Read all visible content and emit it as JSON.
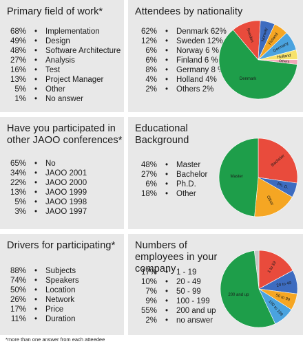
{
  "footnote": "*more than one answer from each atteedee",
  "chart_data": [
    {
      "id": "field",
      "type": "table",
      "title": "Primary field of work*",
      "rows": [
        {
          "pct": "68%",
          "label": "Implementation"
        },
        {
          "pct": "49%",
          "label": "Design"
        },
        {
          "pct": "48%",
          "label": "Software Architecture"
        },
        {
          "pct": "27%",
          "label": "Analysis"
        },
        {
          "pct": "16%",
          "label": "Test"
        },
        {
          "pct": "13%",
          "label": "Project Manager"
        },
        {
          "pct": "5%",
          "label": "Other"
        },
        {
          "pct": "1%",
          "label": "No answer"
        }
      ]
    },
    {
      "id": "nationality",
      "type": "pie",
      "title": "Attendees by nationality",
      "rows": [
        {
          "pct": "62%",
          "label": "Denmark 62%"
        },
        {
          "pct": "12%",
          "label": "Sweden 12%"
        },
        {
          "pct": "6%",
          "label": "Norway 6 %"
        },
        {
          "pct": "6%",
          "label": "Finland 6 %"
        },
        {
          "pct": "8%",
          "label": "Germany 8 %"
        },
        {
          "pct": "4%",
          "label": "Holland 4%"
        },
        {
          "pct": "2%",
          "label": "Others 2%"
        }
      ],
      "slices": [
        {
          "label": "Sweden",
          "value": 12,
          "color": "#e94b3c"
        },
        {
          "label": "Norway",
          "value": 6,
          "color": "#3d6cc0"
        },
        {
          "label": "Finland",
          "value": 6,
          "color": "#f5a623"
        },
        {
          "label": "Germany",
          "value": 8,
          "color": "#4aa3df"
        },
        {
          "label": "Holland",
          "value": 4,
          "color": "#f7e26b"
        },
        {
          "label": "Others",
          "value": 2,
          "color": "#f2a7b8"
        },
        {
          "label": "Denmark",
          "value": 62,
          "color": "#1e9e4a"
        }
      ]
    },
    {
      "id": "jaoo",
      "type": "table",
      "title": "Have you participated in other JAOO conferences*",
      "rows": [
        {
          "pct": "65%",
          "label": "No"
        },
        {
          "pct": "34%",
          "label": "JAOO 2001"
        },
        {
          "pct": "22%",
          "label": "JAOO 2000"
        },
        {
          "pct": "13%",
          "label": "JAOO 1999"
        },
        {
          "pct": "5%",
          "label": "JAOO 1998"
        },
        {
          "pct": "3%",
          "label": "JAOO 1997"
        }
      ]
    },
    {
      "id": "education",
      "type": "pie",
      "title": "Educational Background",
      "rows": [
        {
          "pct": "48%",
          "label": "Master"
        },
        {
          "pct": "27%",
          "label": "Bachelor"
        },
        {
          "pct": "6%",
          "label": "Ph.D."
        },
        {
          "pct": "18%",
          "label": "Other"
        }
      ],
      "slices": [
        {
          "label": "Bachelor",
          "value": 27,
          "color": "#e94b3c"
        },
        {
          "label": "Ph. D.",
          "value": 6,
          "color": "#3d6cc0"
        },
        {
          "label": "Other",
          "value": 18,
          "color": "#f5a623"
        },
        {
          "label": "Master",
          "value": 48,
          "color": "#1e9e4a"
        }
      ]
    },
    {
      "id": "drivers",
      "type": "table",
      "title": "Drivers for participating*",
      "rows": [
        {
          "pct": "88%",
          "label": "Subjects"
        },
        {
          "pct": "74%",
          "label": "Speakers"
        },
        {
          "pct": "50%",
          "label": "Location"
        },
        {
          "pct": "26%",
          "label": "Network"
        },
        {
          "pct": "17%",
          "label": "Price"
        },
        {
          "pct": "11%",
          "label": "Duration"
        }
      ]
    },
    {
      "id": "employees",
      "type": "pie",
      "title": "Numbers of employees in your company",
      "rows": [
        {
          "pct": "17%",
          "label": "1 - 19"
        },
        {
          "pct": "10%",
          "label": "20 - 49"
        },
        {
          "pct": "7%",
          "label": "50 - 99"
        },
        {
          "pct": "9%",
          "label": "100 - 199"
        },
        {
          "pct": "55%",
          "label": "200 and up"
        },
        {
          "pct": "2%",
          "label": "no answer"
        }
      ],
      "slices": [
        {
          "label": "",
          "value": 2,
          "color": "#c7c7c7"
        },
        {
          "label": "1 to 19",
          "value": 17,
          "color": "#e94b3c"
        },
        {
          "label": "20 to 49",
          "value": 10,
          "color": "#3d6cc0"
        },
        {
          "label": "50 to 99",
          "value": 7,
          "color": "#f5a623"
        },
        {
          "label": "100 to 199",
          "value": 9,
          "color": "#4aa3df"
        },
        {
          "label": "200 and up",
          "value": 55,
          "color": "#1e9e4a"
        }
      ]
    }
  ]
}
